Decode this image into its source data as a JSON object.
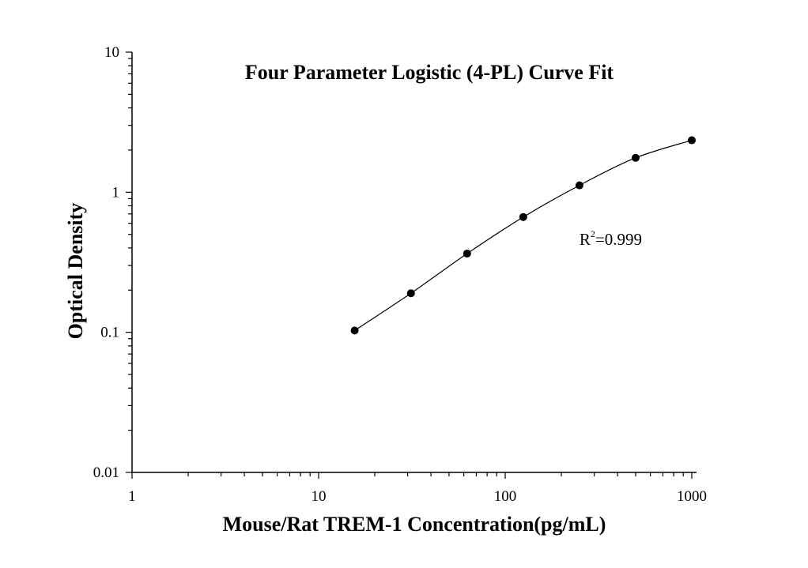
{
  "chart_data": {
    "type": "scatter",
    "title": "Four Parameter Logistic (4-PL) Curve Fit",
    "xlabel": "Mouse/Rat TREM-1 Concentration(pg/mL)",
    "ylabel": "Optical Density",
    "xscale": "log",
    "yscale": "log",
    "xlim": [
      1,
      1000
    ],
    "ylim": [
      0.01,
      10
    ],
    "x_ticks": [
      "1",
      "10",
      "100",
      "1000"
    ],
    "y_ticks": [
      "0.01",
      "0.1",
      "1",
      "10"
    ],
    "grid": false,
    "series": [
      {
        "x": [
          15.6,
          31.25,
          62.5,
          125,
          250,
          500,
          1000
        ],
        "y": [
          0.103,
          0.19,
          0.365,
          0.665,
          1.12,
          1.76,
          2.35
        ]
      }
    ],
    "fit_curve": {
      "model": "4-PL",
      "x_range": [
        15.6,
        1000
      ]
    },
    "annotation": {
      "base": "R",
      "sup": "2",
      "value": "=0.999",
      "at": [
        250,
        0.42
      ]
    },
    "colors": {
      "points": "#000000",
      "curve": "#000000",
      "axis": "#000000"
    }
  }
}
